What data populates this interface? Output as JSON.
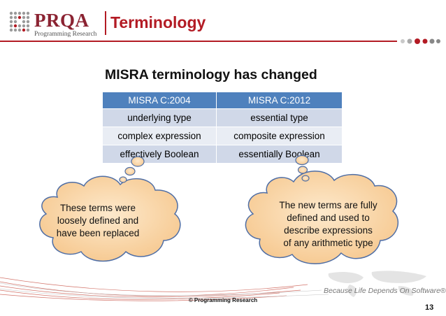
{
  "header": {
    "brand_name": "PRQA",
    "brand_sub": "Programming Research",
    "title": "Terminology"
  },
  "subtitle": "MISRA terminology has changed",
  "table": {
    "headers": [
      "MISRA C:2004",
      "MISRA C:2012"
    ],
    "rows": [
      [
        "underlying type",
        "essential type"
      ],
      [
        "complex expression",
        "composite expression"
      ],
      [
        "effectively Boolean",
        "essentially Boolean"
      ]
    ]
  },
  "clouds": {
    "left": [
      "These terms were",
      "loosely defined and",
      "have been replaced"
    ],
    "right": [
      "The new terms are fully",
      "defined and used to",
      "describe expressions",
      "of any arithmetic type"
    ]
  },
  "footer": {
    "copyright": "© Programming Research",
    "tagline": "Because Life Depends On Software®",
    "page_number": "13"
  },
  "colors": {
    "accent_red": "#b31b24",
    "brand_maroon": "#8b2332",
    "table_header": "#4f81bd",
    "table_row_dark": "#d0d8e8",
    "table_row_light": "#e9edf4",
    "cloud_fill": "#f8d5a5",
    "cloud_stroke": "#4f6ea5"
  }
}
